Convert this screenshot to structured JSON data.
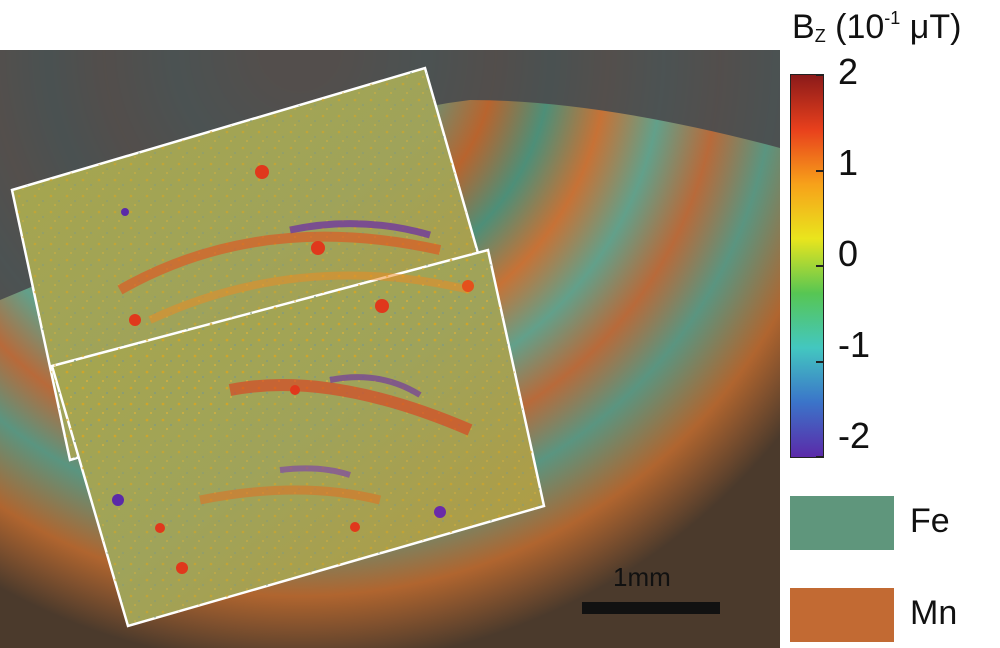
{
  "colorbar": {
    "title_main": "B",
    "title_sub": "Z",
    "title_paren_open": "(10",
    "title_exp": "-1",
    "title_unit": " μT)",
    "ticks": [
      "2",
      "1",
      "0",
      "-1",
      "-2"
    ],
    "colors": [
      "#8b1a1a",
      "#e8401c",
      "#f7a11a",
      "#e9e51d",
      "#57c653",
      "#43c7c0",
      "#3b74c9",
      "#5b2aa9"
    ]
  },
  "legend": {
    "items": [
      {
        "label": "Fe",
        "color": "#5f967c"
      },
      {
        "label": "Mn",
        "color": "#c26a33"
      }
    ]
  },
  "scale_bar": {
    "label": "1mm"
  }
}
